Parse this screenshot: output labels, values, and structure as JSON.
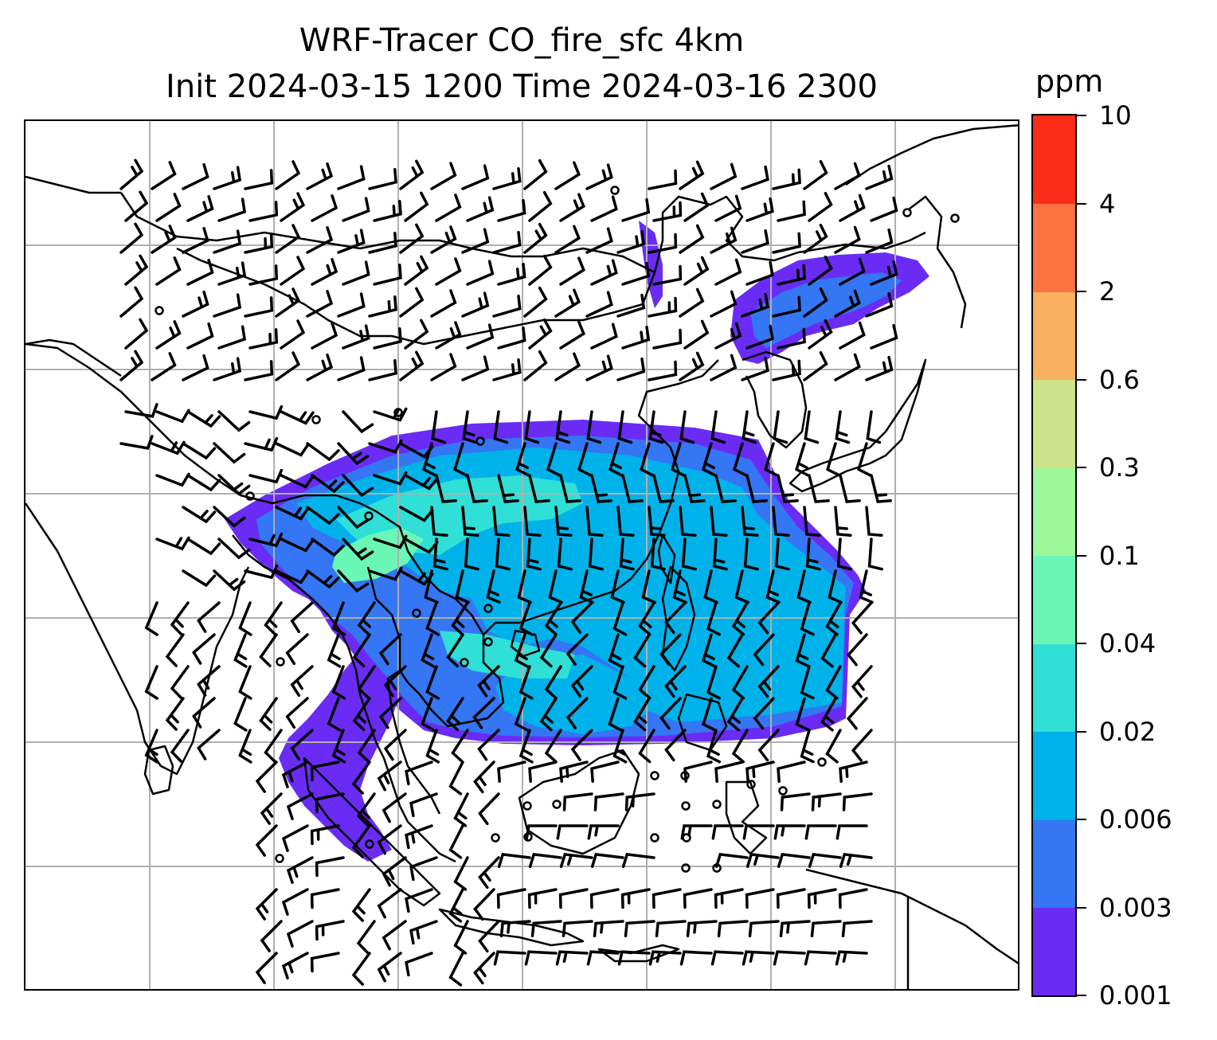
{
  "figure": {
    "title_line_1": "WRF-Tracer CO_fire_sfc 4km",
    "title_line_2": "Init 2024-03-15 1200 Time 2024-03-16 2300"
  },
  "map": {
    "variable": "CO_fire_sfc",
    "overlay": "wind barbs",
    "gridlines": true,
    "coastline_color": "#000000",
    "gridline_color": "#b0b0b0",
    "plume_regions": [
      {
        "region": "Northeast China / Korea",
        "level_color": "#6a2cf5"
      },
      {
        "region": "South China / Indochina / South China Sea",
        "level_color": "#00b2ea"
      },
      {
        "region": "Northern Thailand / Myanmar",
        "level_color": "#6af7b6"
      },
      {
        "region": "Andaman Sea / Sumatra",
        "level_color": "#6a2cf5"
      }
    ]
  },
  "colorbar": {
    "unit": "ppm",
    "levels": [
      "0.001",
      "0.003",
      "0.006",
      "0.02",
      "0.04",
      "0.1",
      "0.3",
      "0.6",
      "2",
      "4",
      "10"
    ],
    "colors": [
      "#6a2cf5",
      "#3476f4",
      "#00b2ea",
      "#30dfd6",
      "#6af7b6",
      "#9df89a",
      "#cfe38a",
      "#fbb060",
      "#ff7242",
      "#fb2c18"
    ]
  }
}
